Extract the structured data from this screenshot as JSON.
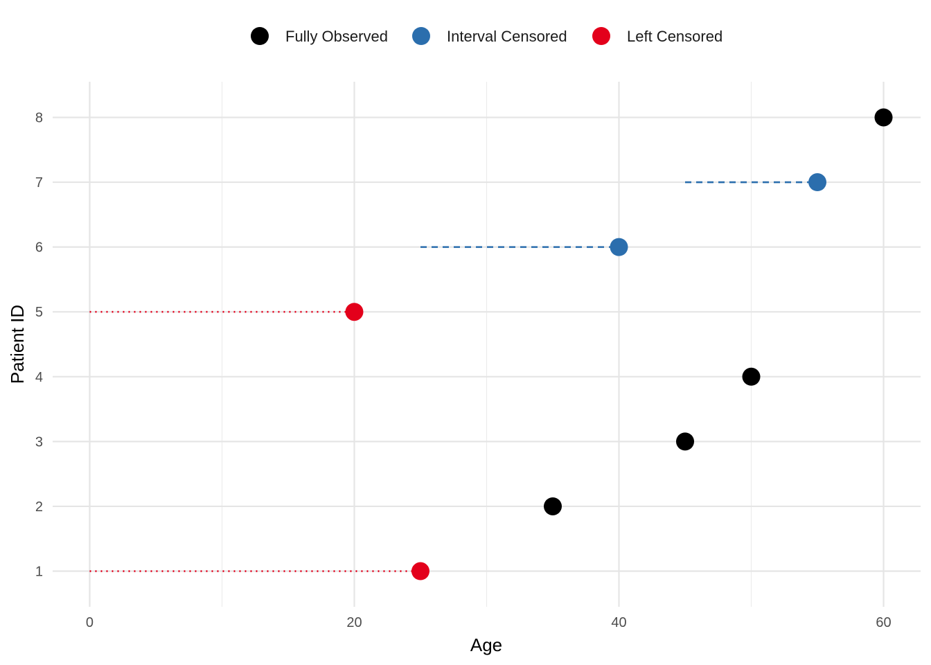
{
  "chart_data": {
    "type": "scatter",
    "title": "",
    "xlabel": "Age",
    "ylabel": "Patient ID",
    "xlim": [
      -2.8,
      62.8
    ],
    "ylim": [
      0.45,
      8.55
    ],
    "x_ticks": [
      0,
      20,
      40,
      60
    ],
    "x_tick_labels": [
      "0",
      "20",
      "40",
      "60"
    ],
    "y_ticks": [
      1,
      2,
      3,
      4,
      5,
      6,
      7,
      8
    ],
    "y_tick_labels": [
      "1",
      "2",
      "3",
      "4",
      "5",
      "6",
      "7",
      "8"
    ],
    "grid": true,
    "legend_position": "top",
    "series": [
      {
        "name": "Fully Observed",
        "color": "#000000",
        "points": [
          {
            "id": 2,
            "age": 35
          },
          {
            "id": 3,
            "age": 45
          },
          {
            "id": 4,
            "age": 50
          },
          {
            "id": 8,
            "age": 60
          }
        ]
      },
      {
        "name": "Interval Censored",
        "color": "#2b6ead",
        "line_style": "dashed",
        "points": [
          {
            "id": 6,
            "age": 40,
            "interval_start": 25
          },
          {
            "id": 7,
            "age": 55,
            "interval_start": 45
          }
        ]
      },
      {
        "name": "Left Censored",
        "color": "#e3001b",
        "line_style": "dotted",
        "points": [
          {
            "id": 1,
            "age": 25,
            "interval_start": 0
          },
          {
            "id": 5,
            "age": 20,
            "interval_start": 0
          }
        ]
      }
    ]
  }
}
